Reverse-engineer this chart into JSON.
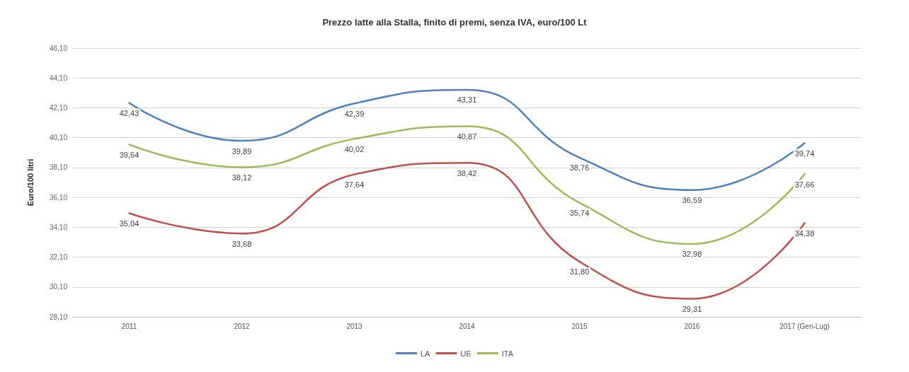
{
  "chart_data": {
    "type": "line",
    "title": "Prezzo latte alla Stalla, finito di premi, senza IVA, euro/100 Lt",
    "ylabel": "Euro/100 litri",
    "categories": [
      "2011",
      "2012",
      "2013",
      "2014",
      "2015",
      "2016",
      "2017 (Gen-Lug)"
    ],
    "series": [
      {
        "name": "LA",
        "color": "#4f81bd",
        "values": [
          42.43,
          39.89,
          42.39,
          43.31,
          38.76,
          36.59,
          39.74
        ],
        "value_labels": [
          "42,43",
          "39,89",
          "42,39",
          "43,31",
          "38,76",
          "36,59",
          "39,74"
        ]
      },
      {
        "name": "UE",
        "color": "#c0504d",
        "values": [
          35.04,
          33.68,
          37.64,
          38.42,
          31.8,
          29.31,
          34.38
        ],
        "value_labels": [
          "35,04",
          "33,68",
          "37,64",
          "38,42",
          "31,80",
          "29,31",
          "34,38"
        ]
      },
      {
        "name": "ITA",
        "color": "#9bbb59",
        "values": [
          39.64,
          38.12,
          40.02,
          40.87,
          35.74,
          32.98,
          37.66
        ],
        "value_labels": [
          "39,64",
          "38,12",
          "40,02",
          "40,87",
          "35,74",
          "32,98",
          "37,66"
        ]
      }
    ],
    "ylim": [
      28.1,
      46.1
    ],
    "yticks": [
      {
        "value": 28.1,
        "label": "28,10"
      },
      {
        "value": 30.1,
        "label": "30,10"
      },
      {
        "value": 32.1,
        "label": "32,10"
      },
      {
        "value": 34.1,
        "label": "34,10"
      },
      {
        "value": 36.1,
        "label": "36,10"
      },
      {
        "value": 38.1,
        "label": "38,10"
      },
      {
        "value": 40.1,
        "label": "40,10"
      },
      {
        "value": 42.1,
        "label": "42,10"
      },
      {
        "value": 44.1,
        "label": "44,10"
      },
      {
        "value": 46.1,
        "label": "46,10"
      }
    ],
    "grid": "y",
    "legend": "bottom",
    "marker": "none",
    "line_style": "solid"
  }
}
